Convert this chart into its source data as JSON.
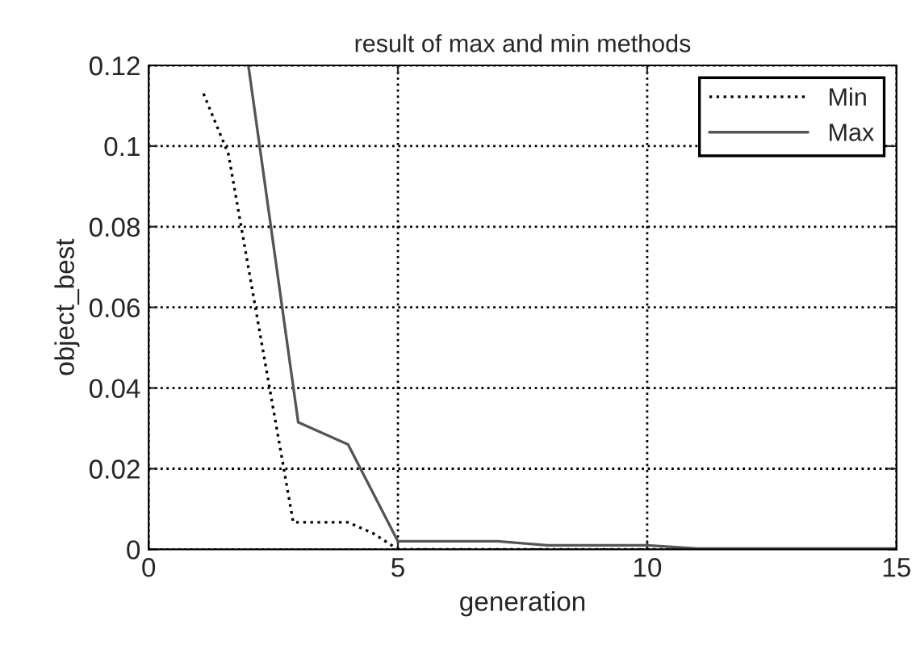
{
  "chart_data": {
    "type": "line",
    "title": "result of max and min methods",
    "xlabel": "generation",
    "ylabel": "object_best",
    "series": [
      {
        "name": "Min",
        "color": "#000000",
        "line_style": "dotted",
        "x": [
          1.1,
          1.6,
          2.9,
          4,
          4.5,
          5,
          15
        ],
        "values": [
          0.113,
          0.098,
          0.0067,
          0.0067,
          0.004,
          0,
          0
        ]
      },
      {
        "name": "Max",
        "color": "#555555",
        "line_style": "solid",
        "x": [
          2,
          3,
          4,
          5,
          7,
          8,
          10,
          11,
          15
        ],
        "values": [
          0.12,
          0.0315,
          0.026,
          0.002,
          0.002,
          0.001,
          0.001,
          0.0002,
          0.0002
        ]
      }
    ],
    "xlim": [
      0,
      15
    ],
    "xticks": [
      0,
      5,
      10,
      15
    ],
    "ylim": [
      0,
      0.12
    ],
    "yticks": [
      0,
      0.02,
      0.04,
      0.06,
      0.08,
      0.1,
      0.12
    ],
    "grid": true,
    "legend": "top right",
    "marker": "none"
  }
}
